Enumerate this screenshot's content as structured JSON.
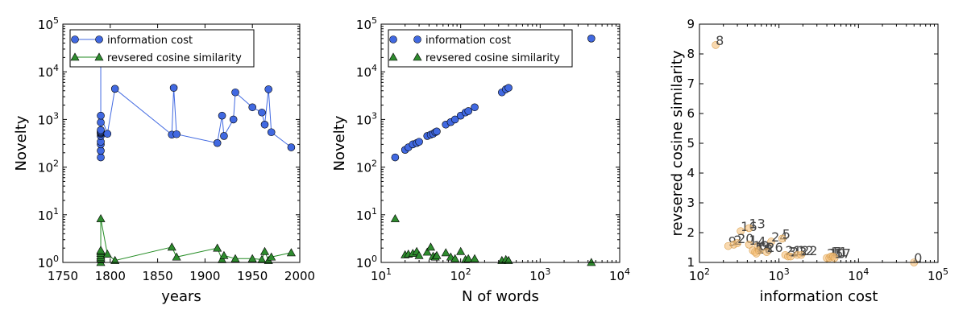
{
  "colors": {
    "information_cost": "#4169e1",
    "reversed_cosine": "#2e8b2e",
    "line_info": "#4169e1",
    "line_cos": "#228b22",
    "scatter_fill": "#f5c07a"
  },
  "chart_data": [
    {
      "type": "line",
      "xlabel": "years",
      "ylabel": "Novelty",
      "xlim": [
        1750,
        2000
      ],
      "xscale": "linear",
      "yscale": "log",
      "ylim": [
        1,
        100000
      ],
      "xticks": [
        1750,
        1800,
        1850,
        1900,
        1950,
        2000
      ],
      "yticks": [
        1,
        10,
        100,
        1000,
        10000,
        100000
      ],
      "legend": "top-left",
      "series": [
        {
          "name": "information cost",
          "marker": "circle",
          "color": "#4169e1",
          "x": [
            1790,
            1790,
            1790,
            1790,
            1790,
            1790,
            1790,
            1790,
            1790,
            1790,
            1790,
            1790,
            1790,
            1797,
            1805,
            1865,
            1867,
            1870,
            1913,
            1918,
            1920,
            1930,
            1932,
            1950,
            1960,
            1963,
            1967,
            1970,
            1991
          ],
          "y": [
            50000,
            160,
            220,
            300,
            340,
            450,
            500,
            520,
            540,
            560,
            600,
            870,
            1200,
            500,
            4400,
            480,
            4600,
            490,
            320,
            1200,
            450,
            1000,
            3700,
            1800,
            1400,
            780,
            4300,
            540,
            260
          ]
        },
        {
          "name": "revsered cosine similarity",
          "marker": "triangle",
          "color": "#2e8b2e",
          "x": [
            1790,
            1790,
            1790,
            1790,
            1790,
            1790,
            1790,
            1790,
            1797,
            1805,
            1865,
            1870,
            1913,
            1918,
            1920,
            1932,
            1950,
            1960,
            1963,
            1967,
            1970,
            1991
          ],
          "y": [
            1.0,
            1.2,
            1.3,
            1.4,
            1.55,
            1.7,
            1.8,
            8.3,
            1.5,
            1.1,
            2.1,
            1.3,
            2.0,
            1.15,
            1.4,
            1.2,
            1.2,
            1.15,
            1.7,
            1.1,
            1.3,
            1.6
          ]
        }
      ]
    },
    {
      "type": "scatter",
      "xlabel": "N of words",
      "ylabel": "Novelty",
      "xscale": "log",
      "yscale": "log",
      "xlim": [
        10,
        10000
      ],
      "ylim": [
        1,
        100000
      ],
      "xticks": [
        10,
        100,
        1000,
        10000
      ],
      "yticks": [
        1,
        10,
        100,
        1000,
        10000,
        100000
      ],
      "legend": "top-left",
      "series": [
        {
          "name": "information cost",
          "marker": "circle",
          "color": "#4169e1",
          "x": [
            15,
            20,
            22,
            25,
            28,
            30,
            38,
            42,
            45,
            48,
            50,
            65,
            75,
            85,
            100,
            115,
            125,
            150,
            330,
            370,
            400,
            4400
          ],
          "y": [
            160,
            230,
            260,
            300,
            320,
            340,
            450,
            480,
            500,
            540,
            560,
            780,
            880,
            1000,
            1200,
            1400,
            1500,
            1800,
            3700,
            4300,
            4600,
            50000
          ]
        },
        {
          "name": "revsered cosine similarity",
          "marker": "triangle",
          "color": "#2e8b2e",
          "x": [
            15,
            20,
            22,
            25,
            28,
            30,
            38,
            42,
            45,
            48,
            50,
            65,
            75,
            85,
            100,
            115,
            125,
            150,
            330,
            370,
            400,
            4400
          ],
          "y": [
            8.3,
            1.45,
            1.5,
            1.55,
            1.7,
            1.4,
            1.65,
            2.1,
            1.35,
            1.3,
            1.4,
            1.6,
            1.3,
            1.2,
            1.7,
            1.15,
            1.2,
            1.2,
            1.1,
            1.15,
            1.1,
            1.0
          ]
        }
      ]
    },
    {
      "type": "scatter",
      "xlabel": "information cost",
      "ylabel": "revsered cosine similarity",
      "xscale": "log",
      "yscale": "linear",
      "xlim": [
        100,
        100000
      ],
      "ylim": [
        1,
        9
      ],
      "xticks": [
        100,
        1000,
        10000,
        100000
      ],
      "yticks": [
        1,
        2,
        3,
        4,
        5,
        6,
        7,
        8,
        9
      ],
      "points": [
        {
          "label": "8",
          "x": 160,
          "y": 8.3
        },
        {
          "label": "16",
          "x": 330,
          "y": 2.05
        },
        {
          "label": "13",
          "x": 420,
          "y": 2.15
        },
        {
          "label": "9",
          "x": 230,
          "y": 1.55
        },
        {
          "label": "2",
          "x": 270,
          "y": 1.6
        },
        {
          "label": "20",
          "x": 300,
          "y": 1.65
        },
        {
          "label": "1",
          "x": 420,
          "y": 1.6
        },
        {
          "label": "4",
          "x": 540,
          "y": 1.55
        },
        {
          "label": "24",
          "x": 800,
          "y": 1.7
        },
        {
          "label": "5",
          "x": 1100,
          "y": 1.8
        },
        {
          "label": "19",
          "x": 470,
          "y": 1.4
        },
        {
          "label": "14",
          "x": 500,
          "y": 1.35
        },
        {
          "label": "18",
          "x": 520,
          "y": 1.3
        },
        {
          "label": "6",
          "x": 560,
          "y": 1.4
        },
        {
          "label": "26",
          "x": 700,
          "y": 1.35
        },
        {
          "label": "21",
          "x": 1200,
          "y": 1.25
        },
        {
          "label": "3",
          "x": 1300,
          "y": 1.2
        },
        {
          "label": "23",
          "x": 1400,
          "y": 1.2
        },
        {
          "label": "12",
          "x": 1700,
          "y": 1.25
        },
        {
          "label": "22",
          "x": 1900,
          "y": 1.25
        },
        {
          "label": "25",
          "x": 4000,
          "y": 1.15
        },
        {
          "label": "10",
          "x": 4300,
          "y": 1.15
        },
        {
          "label": "11",
          "x": 4500,
          "y": 1.2
        },
        {
          "label": "7",
          "x": 4800,
          "y": 1.2
        },
        {
          "label": "17",
          "x": 5000,
          "y": 1.15
        },
        {
          "label": "0",
          "x": 50000,
          "y": 1.0
        }
      ]
    }
  ]
}
